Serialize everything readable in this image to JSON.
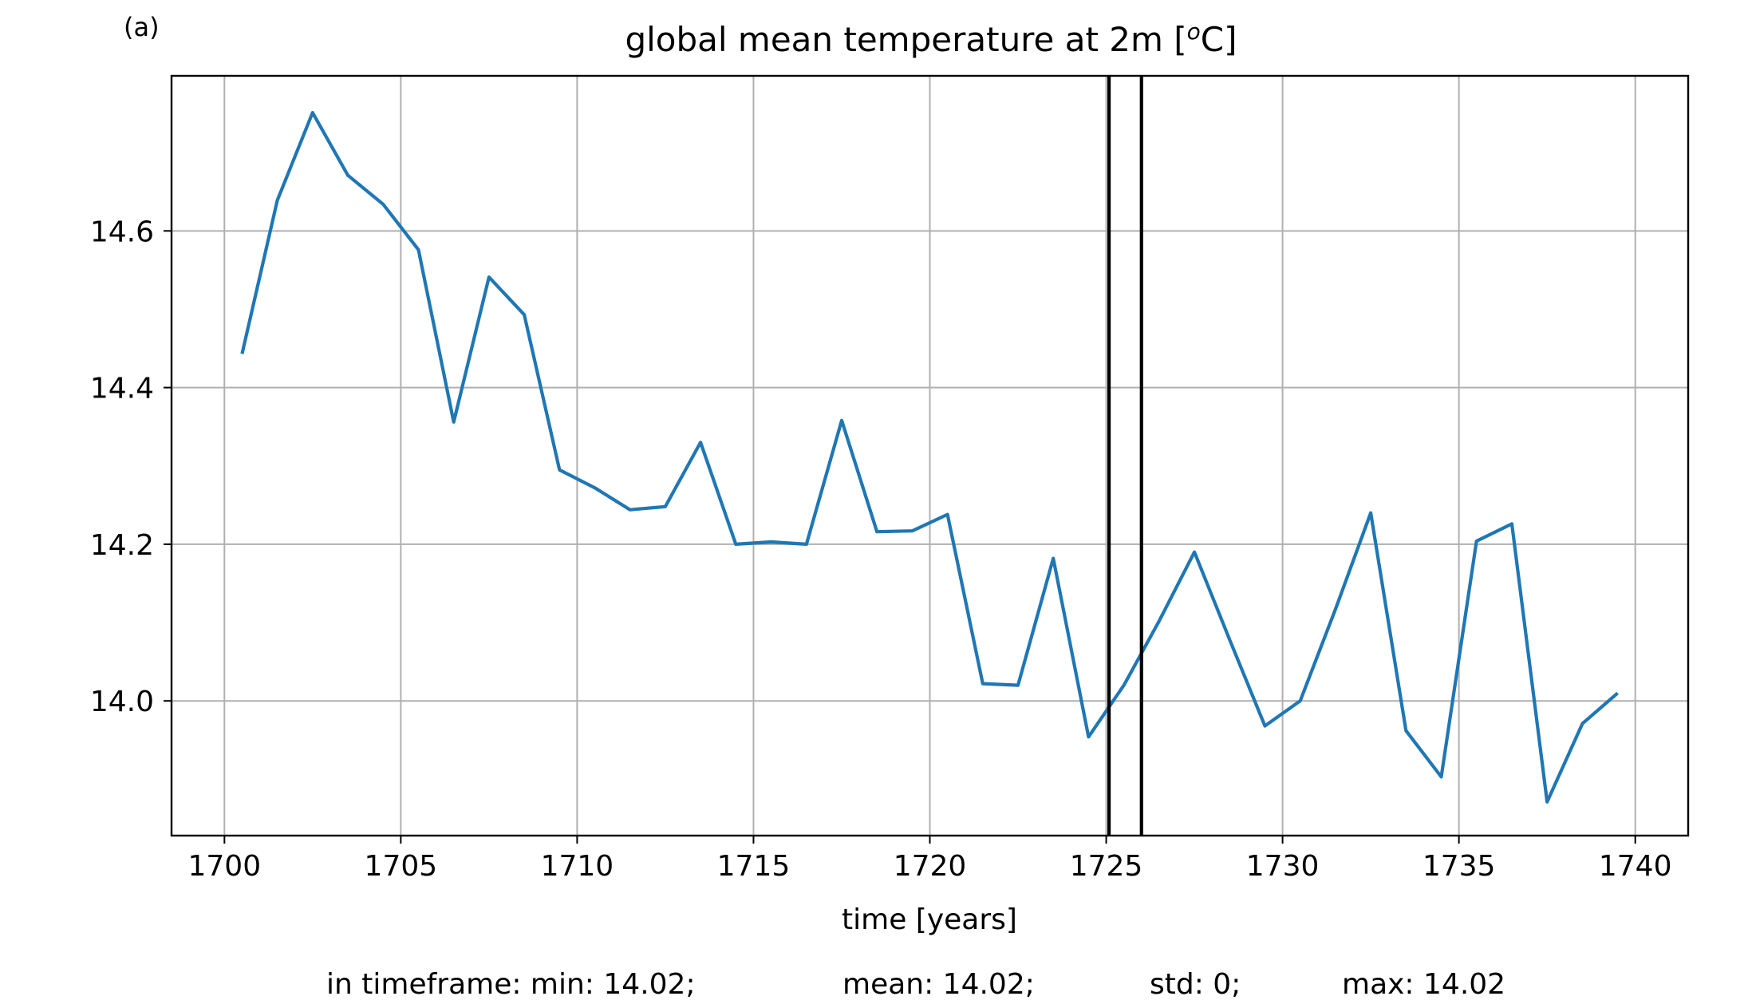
{
  "panel_label": "(a)",
  "footer": {
    "min": "in timeframe: min: 14.02;",
    "mean": "mean: 14.02;",
    "std": "std: 0;",
    "max": "max: 14.02"
  },
  "chart_data": {
    "type": "line",
    "title": "global mean temperature at 2m [",
    "title_sup": "o",
    "title_end": "C]",
    "xlabel": "time [years]",
    "ylabel": "",
    "xlim": [
      1698.5,
      1741.5
    ],
    "ylim": [
      13.828,
      14.798
    ],
    "xticks": [
      1700,
      1705,
      1710,
      1715,
      1720,
      1725,
      1730,
      1735,
      1740
    ],
    "xtick_labels": [
      "1700",
      "1705",
      "1710",
      "1715",
      "1720",
      "1725",
      "1730",
      "1735",
      "1740"
    ],
    "yticks": [
      14.0,
      14.2,
      14.4,
      14.6
    ],
    "ytick_labels": [
      "14.0",
      "14.2",
      "14.4",
      "14.6"
    ],
    "grid": true,
    "line_color": "#1f77b4",
    "vlines": [
      1725.08,
      1726.0
    ],
    "vline_color": "#000000",
    "series": [
      {
        "x": [
          1700.5,
          1701.5,
          1702.5,
          1703.5,
          1704.5,
          1705.5,
          1706.5,
          1707.5,
          1708.5,
          1709.5,
          1710.5,
          1711.5,
          1712.5,
          1713.5,
          1714.5,
          1715.5,
          1716.5,
          1717.5,
          1718.5,
          1719.5,
          1720.5,
          1721.5,
          1722.5,
          1723.5,
          1724.5,
          1725.5,
          1726.5,
          1727.5,
          1728.5,
          1729.5,
          1730.5,
          1731.5,
          1732.5,
          1733.5,
          1734.5,
          1735.5,
          1736.5,
          1737.5,
          1738.5,
          1739.5
        ],
        "values": [
          14.443,
          14.639,
          14.751,
          14.671,
          14.634,
          14.576,
          14.356,
          14.541,
          14.493,
          14.295,
          14.272,
          14.244,
          14.248,
          14.33,
          14.2,
          14.203,
          14.2,
          14.358,
          14.216,
          14.217,
          14.238,
          14.022,
          14.02,
          14.182,
          13.954,
          14.02,
          14.102,
          14.19,
          14.078,
          13.968,
          14.0,
          14.117,
          14.24,
          13.962,
          13.903,
          14.204,
          14.226,
          13.871,
          13.971,
          14.01
        ]
      }
    ]
  }
}
